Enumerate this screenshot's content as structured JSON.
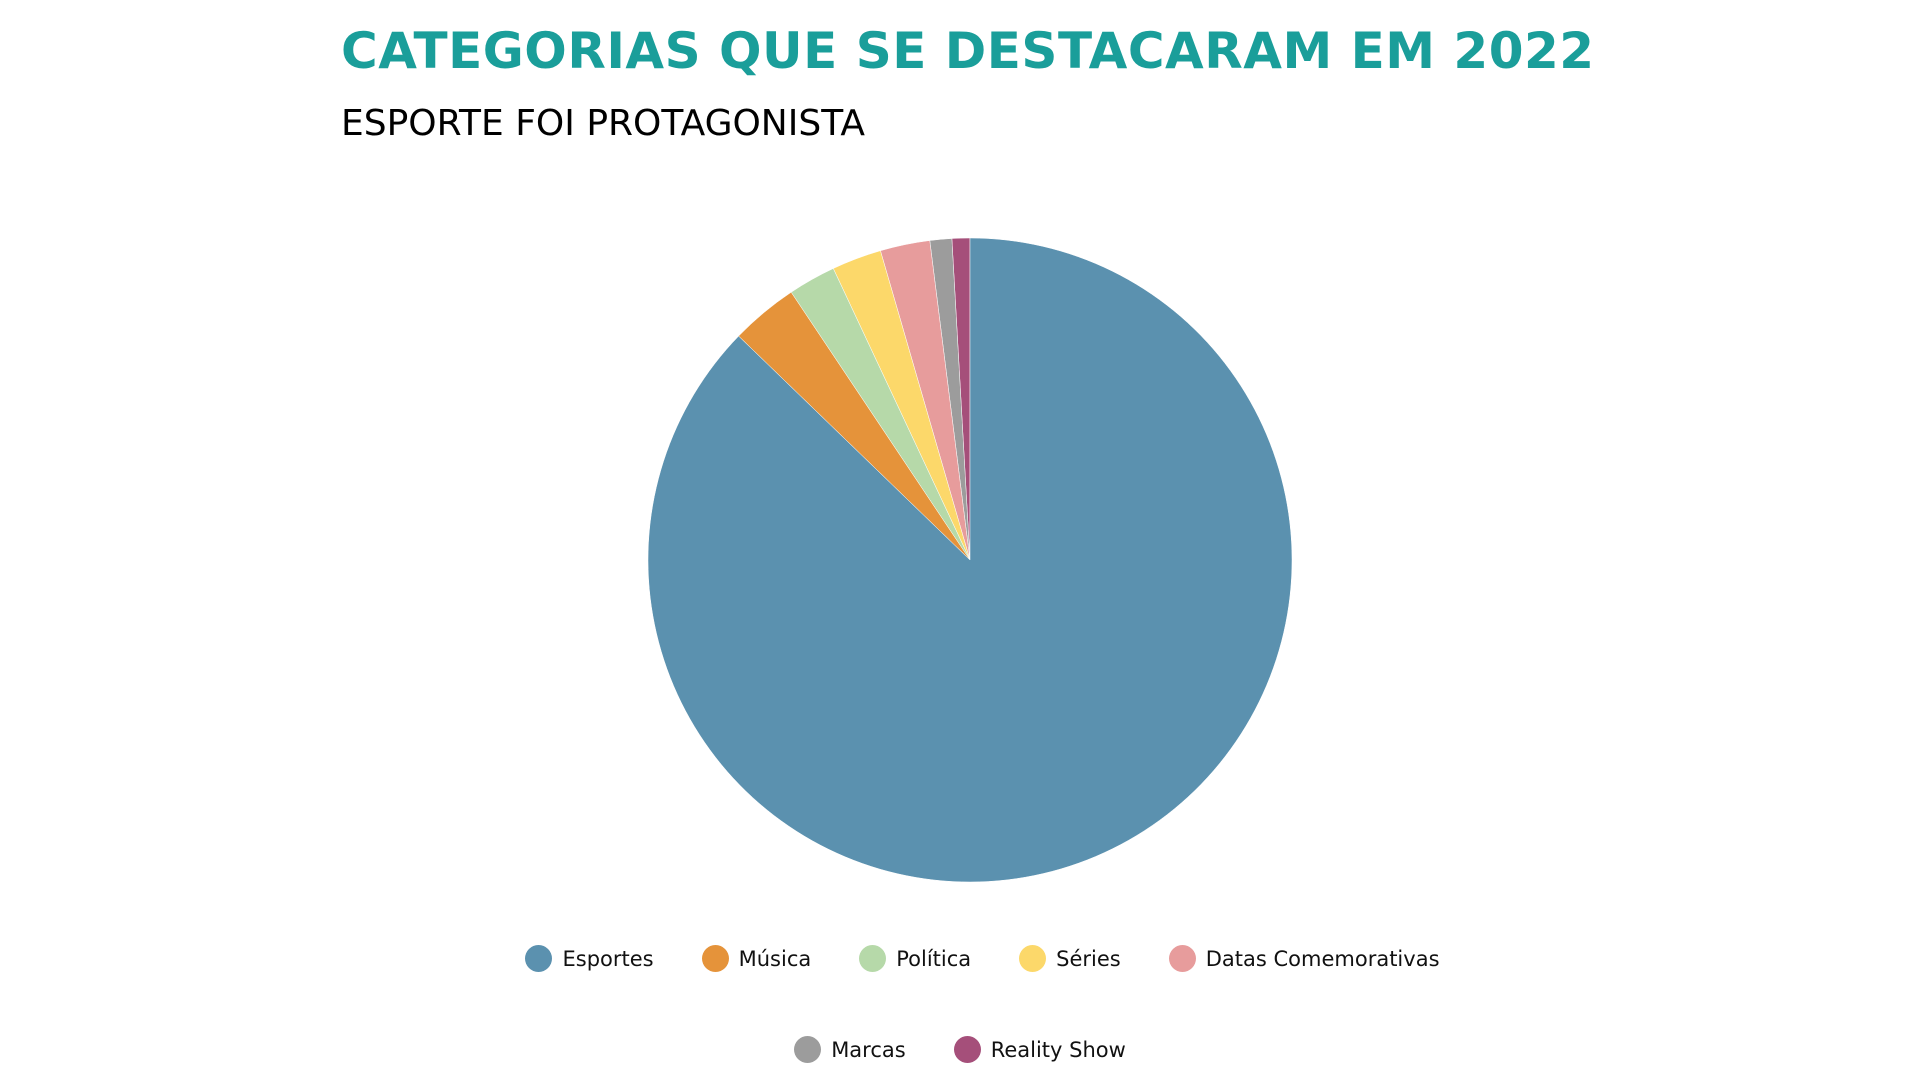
{
  "header": {
    "title": "CATEGORIAS QUE SE DESTACARAM EM 2022",
    "subtitle": "ESPORTE FOI PROTAGONISTA"
  },
  "chart_data": {
    "type": "pie",
    "title": "CATEGORIAS QUE SE DESTACARAM EM 2022",
    "subtitle": "ESPORTE FOI PROTAGONISTA",
    "legend_position": "bottom",
    "slices": [
      {
        "label": "Esportes",
        "value": 87.5,
        "color": "#5b91af"
      },
      {
        "label": "Música",
        "value": 3.4,
        "color": "#e5933a"
      },
      {
        "label": "Política",
        "value": 2.4,
        "color": "#b6d9a9"
      },
      {
        "label": "Séries",
        "value": 2.5,
        "color": "#fcd86a"
      },
      {
        "label": "Datas Comemorativas",
        "value": 2.5,
        "color": "#e79c9c"
      },
      {
        "label": "Marcas",
        "value": 1.1,
        "color": "#9c9c9c"
      },
      {
        "label": "Reality Show",
        "value": 0.9,
        "color": "#a54f7a"
      }
    ]
  }
}
